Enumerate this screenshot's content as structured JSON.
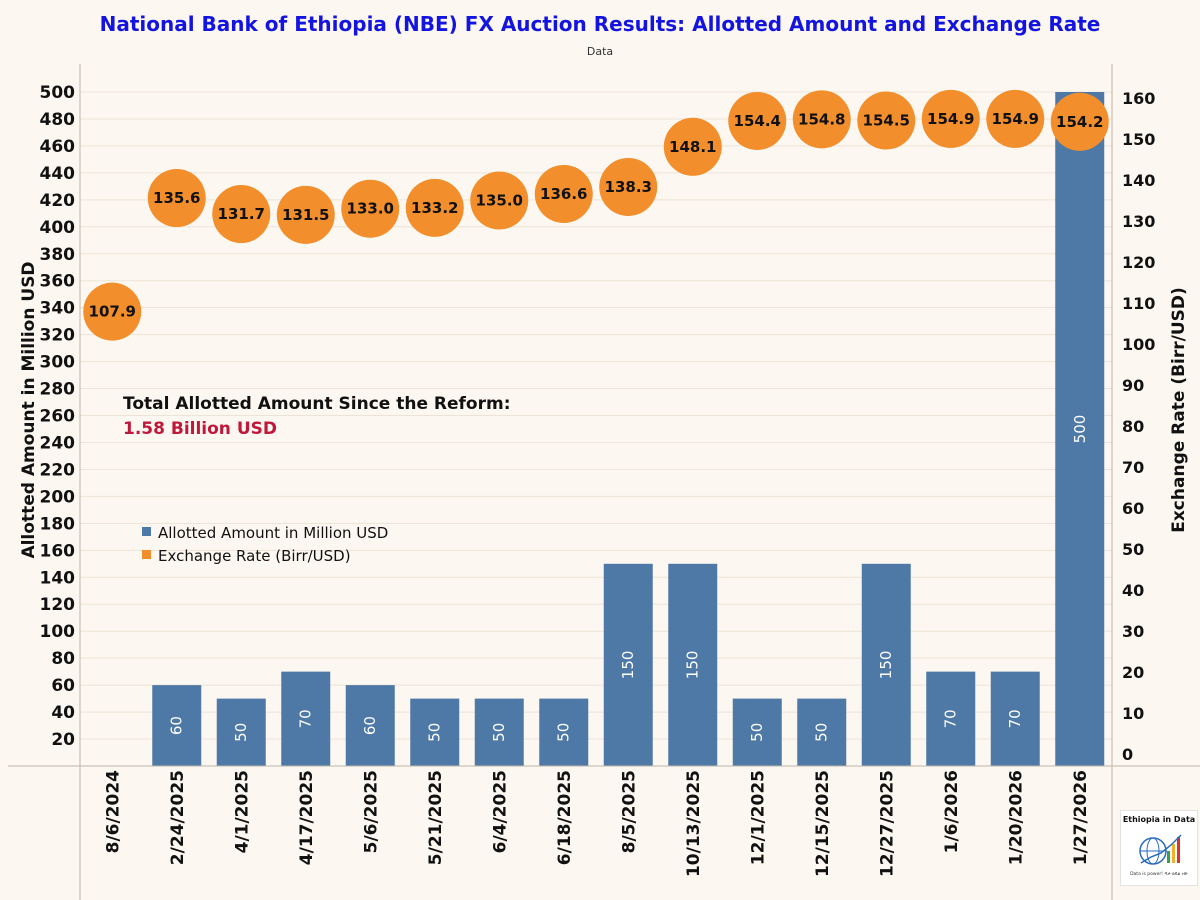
{
  "title": "National Bank of Ethiopia (NBE) FX Auction Results: Allotted Amount and Exchange Rate",
  "subtitle": "Data",
  "annotation": {
    "caption": "Total Allotted Amount Since the Reform:",
    "value": "1.58 Billion USD"
  },
  "logo": {
    "title": "Ethiopia in Data",
    "tagline": "Data is power! ዳታ ኃይል ነው"
  },
  "colors": {
    "bar": "#4e79a7",
    "rate": "#f28e2b",
    "title": "#1414e0",
    "highlight": "#c0183a",
    "background": "#fcf8f1"
  },
  "chart_data": {
    "type": "bar",
    "categories": [
      "8/6/2024",
      "2/24/2025",
      "4/1/2025",
      "4/17/2025",
      "5/6/2025",
      "5/21/2025",
      "6/4/2025",
      "6/18/2025",
      "8/5/2025",
      "10/13/2025",
      "12/1/2025",
      "12/15/2025",
      "12/27/2025",
      "1/6/2026",
      "1/20/2026",
      "1/27/2026"
    ],
    "series": [
      {
        "name": "Allotted Amount in Million USD",
        "type": "bar",
        "axis": "left",
        "values": [
          null,
          60,
          50,
          70,
          60,
          50,
          50,
          50,
          150,
          150,
          50,
          50,
          150,
          70,
          70,
          500
        ]
      },
      {
        "name": "Exchange Rate (Birr/USD)",
        "type": "scatter",
        "axis": "right",
        "values": [
          107.9,
          135.6,
          131.7,
          131.5,
          133.0,
          133.2,
          135.0,
          136.6,
          138.3,
          148.1,
          154.4,
          154.8,
          154.5,
          154.9,
          154.9,
          154.2
        ]
      }
    ],
    "ylabel": "Allotted Amount in Million USD",
    "y2label": "Exchange Rate (Birr/USD)",
    "ylim": [
      0,
      500
    ],
    "y2lim": [
      0,
      160
    ],
    "yticks": [
      20,
      40,
      60,
      80,
      100,
      120,
      140,
      160,
      180,
      200,
      220,
      240,
      260,
      280,
      300,
      320,
      340,
      360,
      380,
      400,
      420,
      440,
      460,
      480,
      500
    ],
    "y2ticks": [
      0,
      10,
      20,
      30,
      40,
      50,
      60,
      70,
      80,
      90,
      100,
      110,
      120,
      130,
      140,
      150,
      160
    ],
    "legend": "center-left",
    "grid": true
  }
}
